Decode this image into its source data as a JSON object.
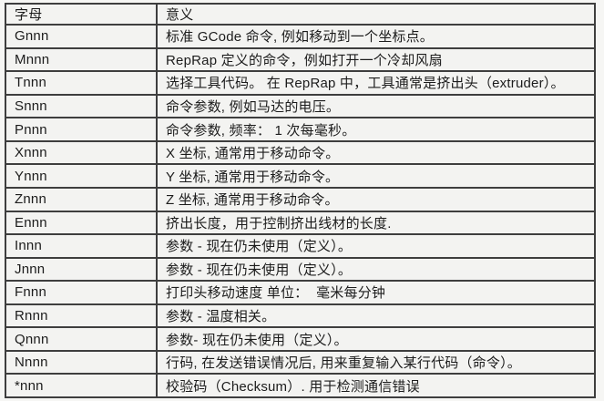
{
  "colors": {
    "border": "#3e3e3e",
    "cell_background": "#f3f3f1",
    "page_background": "#f6f6f4",
    "text": "#1c1c1c"
  },
  "table": {
    "columns": [
      "字母",
      "意义"
    ],
    "rows": [
      {
        "letter": "Gnnn",
        "meaning": "标准 GCode 命令, 例如移动到一个坐标点。"
      },
      {
        "letter": "Mnnn",
        "meaning": "RepRap 定义的命令，例如打开一个冷却风扇"
      },
      {
        "letter": "Tnnn",
        "meaning": "选择工具代码。 在 RepRap 中，工具通常是挤出头（extruder）。"
      },
      {
        "letter": "Snnn",
        "meaning": "命令参数, 例如马达的电压。"
      },
      {
        "letter": "Pnnn",
        "meaning": "命令参数, 频率： 1 次每毫秒。"
      },
      {
        "letter": "Xnnn",
        "meaning": "X 坐标, 通常用于移动命令。"
      },
      {
        "letter": "Ynnn",
        "meaning": "Y 坐标, 通常用于移动命令。"
      },
      {
        "letter": "Znnn",
        "meaning": "Z 坐标, 通常用于移动命令。"
      },
      {
        "letter": "Ennn",
        "meaning": "挤出长度，用于控制挤出线材的长度."
      },
      {
        "letter": "Innn",
        "meaning": "参数 - 现在仍未使用（定义）。"
      },
      {
        "letter": "Jnnn",
        "meaning": "参数 - 现在仍未使用（定义）。"
      },
      {
        "letter": "Fnnn",
        "meaning": "打印头移动速度 单位：  毫米每分钟"
      },
      {
        "letter": "Rnnn",
        "meaning": "参数 - 温度相关。"
      },
      {
        "letter": "Qnnn",
        "meaning": "参数- 现在仍未使用（定义）。"
      },
      {
        "letter": "Nnnn",
        "meaning": "行码, 在发送错误情况后, 用来重复输入某行代码（命令）。"
      },
      {
        "letter": "*nnn",
        "meaning": "校验码（Checksum）. 用于检测通信错误"
      }
    ]
  }
}
